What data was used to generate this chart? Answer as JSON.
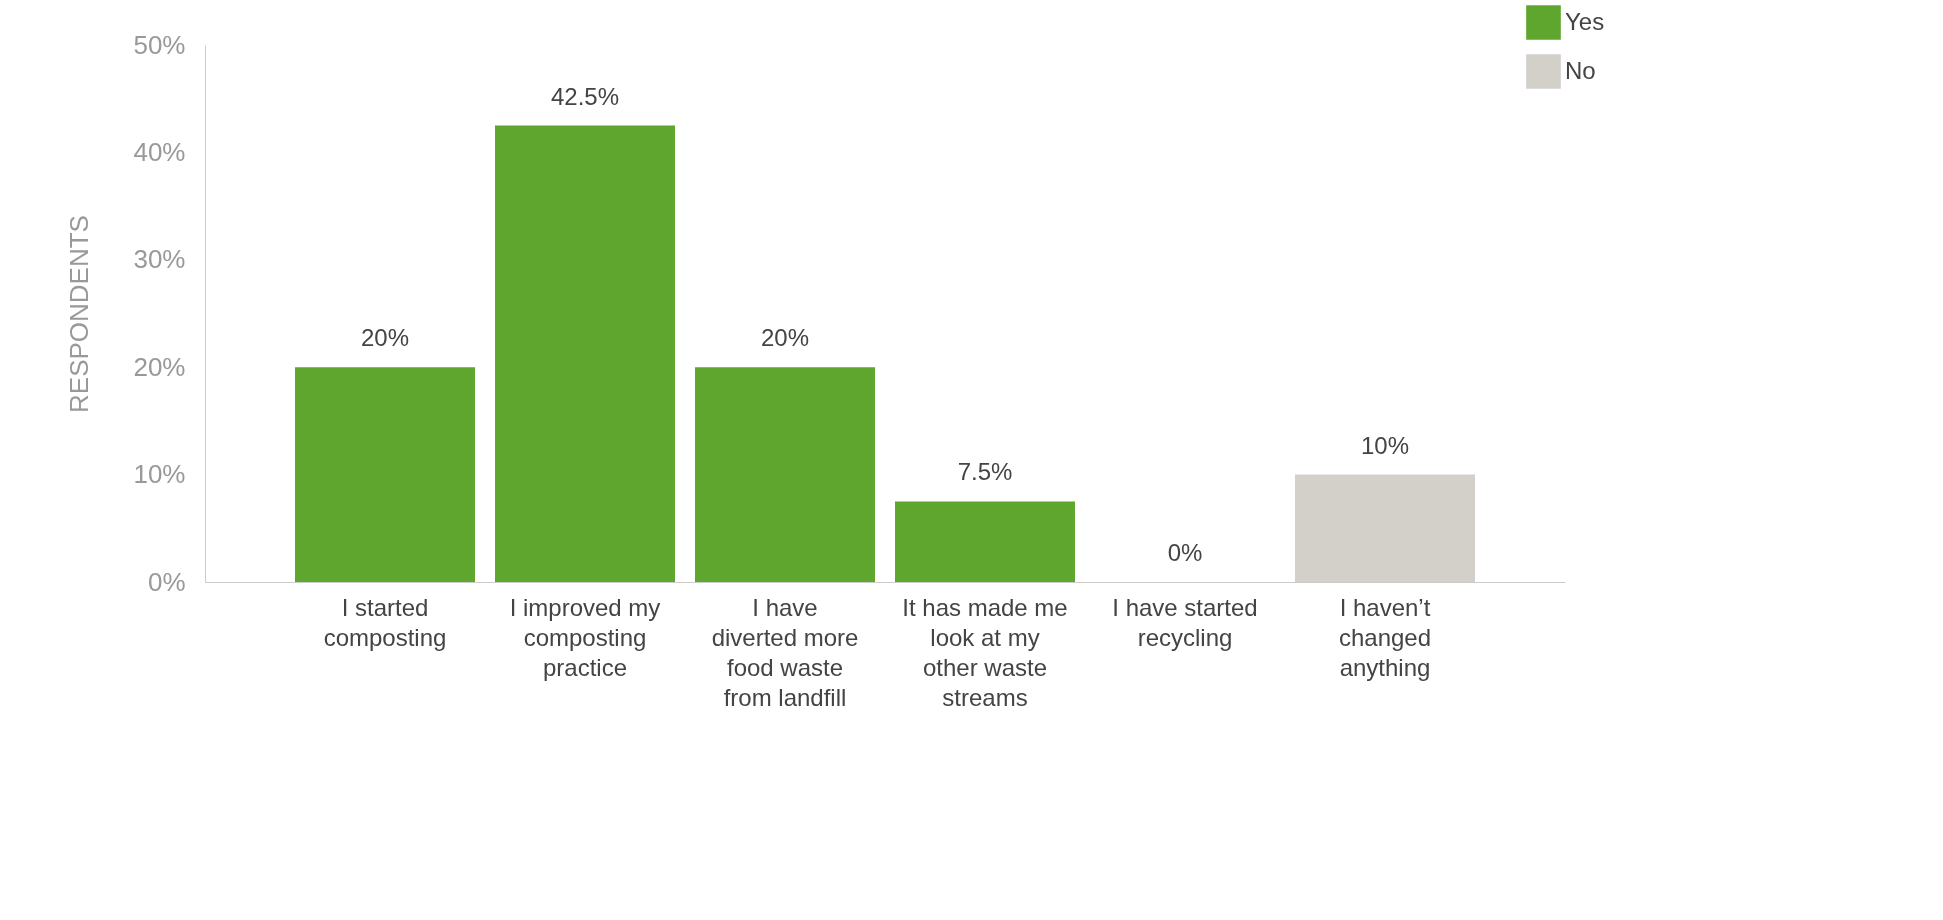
{
  "chart_data": {
    "type": "bar",
    "ylabel": "RESPONDENTS",
    "categories": [
      "I started composting",
      "I improved my composting practice",
      "I have diverted more food waste from landfill",
      "It has made me look at my other waste streams",
      "I have started recycling",
      "I haven’t changed anything"
    ],
    "series": [
      {
        "name": "Yes",
        "color": "#5ea62e",
        "values": [
          20,
          42.5,
          20,
          7.5,
          0,
          null
        ],
        "value_labels": [
          "20%",
          "42.5%",
          "20%",
          "7.5%",
          "0%",
          null
        ]
      },
      {
        "name": "No",
        "color": "#d3cfc9",
        "values": [
          null,
          null,
          null,
          null,
          null,
          10
        ],
        "value_labels": [
          null,
          null,
          null,
          null,
          null,
          "10%"
        ]
      }
    ],
    "ylim": [
      0,
      50
    ],
    "yticks": [
      {
        "value": 0,
        "label": "0%"
      },
      {
        "value": 10,
        "label": "10%"
      },
      {
        "value": 20,
        "label": "20%"
      },
      {
        "value": 30,
        "label": "30%"
      },
      {
        "value": 40,
        "label": "40%"
      },
      {
        "value": 50,
        "label": "50%"
      }
    ],
    "grid": false,
    "legend": "top right"
  }
}
